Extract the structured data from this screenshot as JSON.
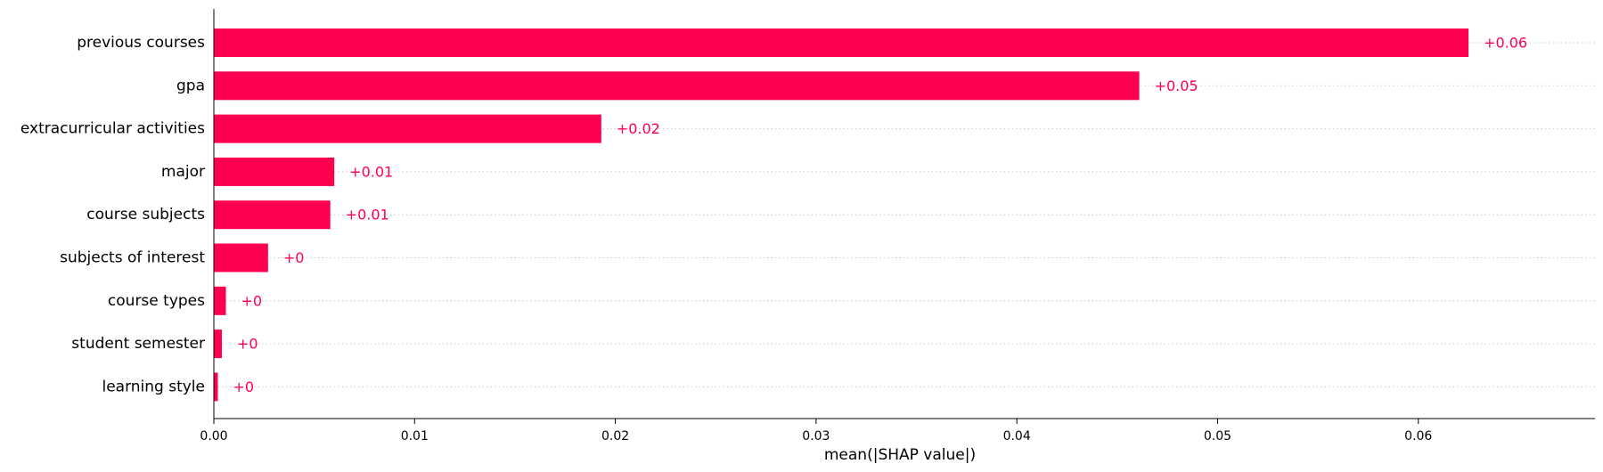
{
  "chart_data": {
    "type": "bar",
    "orientation": "horizontal",
    "categories": [
      "previous courses",
      "gpa",
      "extracurricular activities",
      "major",
      "course subjects",
      "subjects of interest",
      "course types",
      "student semester",
      "learning style"
    ],
    "values": [
      0.0625,
      0.0461,
      0.0193,
      0.006,
      0.0058,
      0.0027,
      0.0006,
      0.0004,
      0.0002
    ],
    "value_labels": [
      "+0.06",
      "+0.05",
      "+0.02",
      "+0.01",
      "+0.01",
      "+0",
      "+0",
      "+0",
      "+0"
    ],
    "xlabel": "mean(|SHAP value|)",
    "ylabel": "",
    "xlim": [
      0,
      0.0688
    ],
    "xticks": [
      0,
      0.01,
      0.02,
      0.03,
      0.04,
      0.05,
      0.06
    ],
    "xtick_labels": [
      "0.00",
      "0.01",
      "0.02",
      "0.03",
      "0.04",
      "0.05",
      "0.06"
    ],
    "grid": "horizontal dotted guide lines per bar",
    "colors": {
      "bar": "#ff0051",
      "label": "#ff0051",
      "gridline": "#cccccc",
      "axis": "#000000"
    }
  }
}
